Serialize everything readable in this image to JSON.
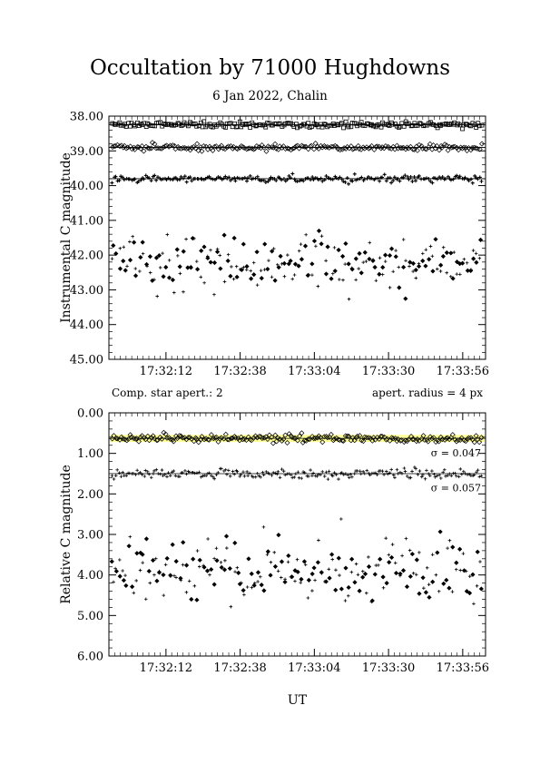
{
  "title": "Occultation by 71000 Hughdowns",
  "subtitle": "6 Jan 2022, Chalin",
  "notes": {
    "left": "Comp. star apert.: 2",
    "right": "apert. radius = 4 px"
  },
  "xlabel": "UT",
  "colors": {
    "ink": "#000000",
    "highlight": "#ffff99"
  },
  "chart_data": [
    {
      "type": "scatter",
      "ylabel": "Instrumental C magnitude",
      "ylim": [
        38.0,
        45.0
      ],
      "y_inverted": true,
      "x_range_seconds_after_17_31_52": [
        0,
        132
      ],
      "y_ticks": [
        "38.00",
        "39.00",
        "40.00",
        "41.00",
        "42.00",
        "43.00",
        "44.00",
        "45.00"
      ],
      "x_ticks": [
        "17:32:12",
        "17:32:38",
        "17:33:04",
        "17:33:30",
        "17:33:56"
      ],
      "grid": false,
      "series": [
        {
          "marker": "square",
          "mean": 38.25,
          "scatter": 0.04,
          "reference_line": true
        },
        {
          "marker": "diamond-open",
          "mean": 38.9,
          "scatter": 0.04,
          "reference_line": true
        },
        {
          "marker": "plus-open",
          "mean": 39.8,
          "scatter": 0.05,
          "reference_line": true
        },
        {
          "marker": "diamond-filled",
          "mean": 42.15,
          "scatter": 0.35
        },
        {
          "marker": "plus",
          "mean": 42.25,
          "scatter": 0.4
        }
      ]
    },
    {
      "type": "scatter",
      "ylabel": "Relative C magnitude",
      "ylim": [
        0.0,
        6.0
      ],
      "y_inverted": true,
      "x_range_seconds_after_17_31_52": [
        0,
        132
      ],
      "y_ticks": [
        "0.00",
        "1.00",
        "2.00",
        "3.00",
        "4.00",
        "5.00",
        "6.00"
      ],
      "x_ticks": [
        "17:32:12",
        "17:32:38",
        "17:33:04",
        "17:33:30",
        "17:33:56"
      ],
      "grid": false,
      "annotations": [
        "σ = 0.047",
        "σ = 0.057"
      ],
      "series": [
        {
          "marker": "diamond-open",
          "mean": 0.63,
          "scatter": 0.05,
          "reference_line": true,
          "highlight_band": true
        },
        {
          "marker": "plus",
          "mean": 1.5,
          "scatter": 0.06,
          "reference_line": true
        },
        {
          "marker": "diamond-filled",
          "mean": 3.85,
          "scatter": 0.35
        },
        {
          "marker": "plus",
          "mean": 3.95,
          "scatter": 0.4
        }
      ]
    }
  ]
}
